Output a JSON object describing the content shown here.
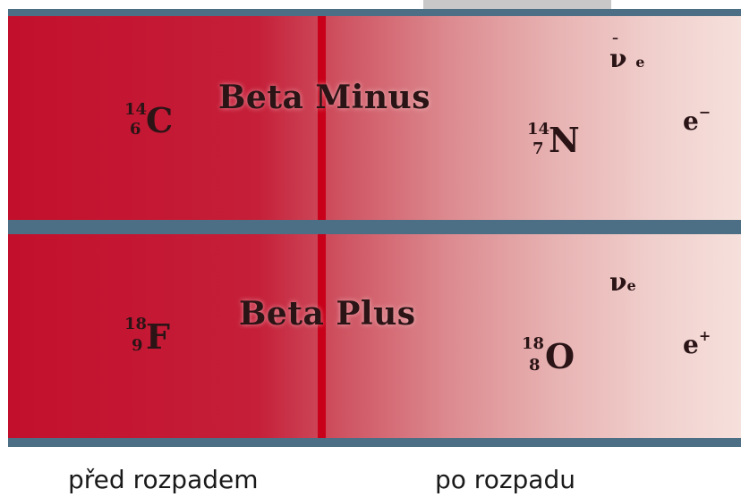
{
  "panels": [
    {
      "title": "Beta Minus",
      "parent": {
        "symbol": "C",
        "mass": "14",
        "z": "6"
      },
      "daughter": {
        "symbol": "N",
        "mass": "14",
        "z": "7"
      },
      "neutrino": {
        "base": "ν",
        "sub": "e",
        "color": "#f1e4e6"
      },
      "lepton": {
        "base": "e",
        "sup": "−",
        "color": "#2f8a3a"
      }
    },
    {
      "title": "Beta Plus",
      "parent": {
        "symbol": "F",
        "mass": "18",
        "z": "9"
      },
      "daughter": {
        "symbol": "O",
        "mass": "18",
        "z": "8"
      },
      "neutrino": {
        "base": "ν",
        "sub": "e",
        "color": "#e0559a"
      },
      "lepton": {
        "base": "e",
        "sup": "+",
        "color": "#4a1430"
      }
    }
  ],
  "captions": {
    "before": "před rozpadem",
    "after": "po rozpadu"
  },
  "colors": {
    "proton": "#f2d23a",
    "neutron": "#5a9fd4",
    "divider": "#c8001a",
    "frame": "#4d6f85"
  }
}
